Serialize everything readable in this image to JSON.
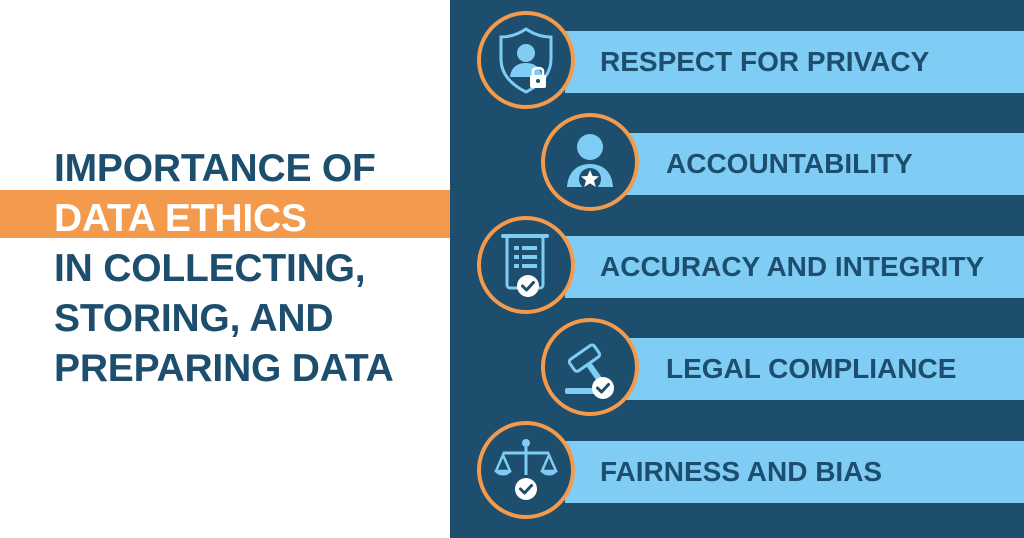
{
  "colors": {
    "navy": "#1d4e6e",
    "band_blue": "#7fcdf4",
    "orange": "#f39a4c",
    "white": "#ffffff",
    "title_text": "#1d4e6e"
  },
  "title": {
    "line1": "IMPORTANCE OF",
    "line2": "DATA ETHICS",
    "line3": "IN COLLECTING,",
    "line4": "STORING, AND",
    "line5": "PREPARING DATA"
  },
  "items": [
    {
      "label": "RESPECT FOR PRIVACY",
      "icon": "shield-user-lock-icon"
    },
    {
      "label": "ACCOUNTABILITY",
      "icon": "user-star-icon"
    },
    {
      "label": "ACCURACY AND INTEGRITY",
      "icon": "document-check-icon"
    },
    {
      "label": "LEGAL COMPLIANCE",
      "icon": "gavel-check-icon"
    },
    {
      "label": "FAIRNESS AND BIAS",
      "icon": "scales-check-icon"
    }
  ]
}
